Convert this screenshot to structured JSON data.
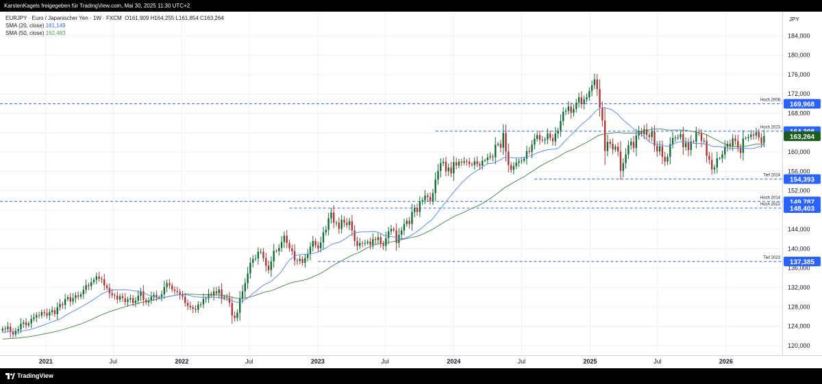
{
  "header": {
    "text": "KarstenKagels freigegeben für TradingView.com, Mai 30, 2025 11:30 UTC+2"
  },
  "legend": {
    "symbol": "EURJPY · Euro / Japanischer Yen · 1W · FXCM",
    "ohlc": "O161,909  H164,255  L161,854  C163,264",
    "sma20_label": "SMA (20, close)",
    "sma20_value": "161,149",
    "sma50_label": "SMA (50, close)",
    "sma50_value": "162,483"
  },
  "footer": {
    "brand": "TradingView"
  },
  "colors": {
    "up": "#0b6b2e",
    "down": "#b03030",
    "sma20": "#5b8def",
    "sma50": "#4f8a4f",
    "level_line": "#2962ff",
    "price_tag_blue": "#2962ff",
    "price_tag_current": "#1b5e20"
  },
  "chart_data": {
    "type": "candlestick",
    "title": "EURJPY · Euro / Japanischer Yen · 1W · FXCM",
    "currency": "JPY",
    "ylim": [
      118,
      189
    ],
    "y_ticks": [
      "184,000",
      "180,000",
      "176,000",
      "172,000",
      "168,000",
      "164,000",
      "160,000",
      "156,000",
      "152,000",
      "148,000",
      "144,000",
      "140,000",
      "136,000",
      "132,000",
      "128,000",
      "124,000",
      "120,000"
    ],
    "x_ticks": [
      {
        "label": "2021",
        "date": "2021-01-01",
        "bold": true
      },
      {
        "label": "Jul",
        "date": "2021-07-01",
        "bold": false
      },
      {
        "label": "2022",
        "date": "2022-01-01",
        "bold": true
      },
      {
        "label": "Jul",
        "date": "2022-07-01",
        "bold": false
      },
      {
        "label": "2023",
        "date": "2023-01-01",
        "bold": true
      },
      {
        "label": "Jul",
        "date": "2023-07-01",
        "bold": false
      },
      {
        "label": "2024",
        "date": "2024-01-01",
        "bold": true
      },
      {
        "label": "Jul",
        "date": "2024-07-01",
        "bold": false
      },
      {
        "label": "2025",
        "date": "2025-01-01",
        "bold": true
      },
      {
        "label": "Jul",
        "date": "2025-07-01",
        "bold": false
      },
      {
        "label": "2026",
        "date": "2026-01-01",
        "bold": true
      }
    ],
    "x_range": [
      "2020-08-31",
      "2026-06-01"
    ],
    "first_candle_date": "2020-09-07",
    "levels": [
      {
        "name": "Hoch 2008",
        "value": 169.968,
        "tag": "169,968",
        "start_date": "2020-08-31"
      },
      {
        "name": "Hoch 2023",
        "value": 164.308,
        "tag": "164,308",
        "start_date": "2023-11-13"
      },
      {
        "name": "Tief 2024",
        "value": 154.393,
        "tag": "154,393",
        "start_date": "2024-08-05"
      },
      {
        "name": "Hoch 2014",
        "value": 149.787,
        "tag": "149,787",
        "start_date": "2020-08-31"
      },
      {
        "name": "Hoch 2022",
        "value": 148.403,
        "tag": "148,403",
        "start_date": "2022-10-17"
      },
      {
        "name": "Tief 2023",
        "value": 137.385,
        "tag": "137,385",
        "start_date": "2023-01-02"
      }
    ],
    "current_price": {
      "value": 163.264,
      "tag": "163,264"
    },
    "series": [
      {
        "name": "SMA (20, close)",
        "value": 161.149
      },
      {
        "name": "SMA (50, close)",
        "value": 162.483
      }
    ],
    "close": [
      123.5,
      123.4,
      123.9,
      122.8,
      122.3,
      123.1,
      123.4,
      124.5,
      124.8,
      124.2,
      124.6,
      125.5,
      125.8,
      126.3,
      126.2,
      126.9,
      126.7,
      126.2,
      126.9,
      127.3,
      126.5,
      127.9,
      128.6,
      128.4,
      129.6,
      130.0,
      129.1,
      129.8,
      130.4,
      130.1,
      130.6,
      131.5,
      132.5,
      132.3,
      133.1,
      133.6,
      134.3,
      133.8,
      133.7,
      132.4,
      131.9,
      130.8,
      130.4,
      130.3,
      129.5,
      130.2,
      129.8,
      129.0,
      129.5,
      129.8,
      128.8,
      129.3,
      130.3,
      131.2,
      129.4,
      128.9,
      129.3,
      130.1,
      130.5,
      129.9,
      130.0,
      130.6,
      132.1,
      132.9,
      132.4,
      131.6,
      131.3,
      131.1,
      130.5,
      130.1,
      128.8,
      128.2,
      127.9,
      127.6,
      127.4,
      128.5,
      128.5,
      129.6,
      129.7,
      130.7,
      130.3,
      131.2,
      130.8,
      131.6,
      129.8,
      130.1,
      129.9,
      128.8,
      126.2,
      125.7,
      126.8,
      129.7,
      131.2,
      132.9,
      134.9,
      137.1,
      137.9,
      138.0,
      139.4,
      139.4,
      138.1,
      136.5,
      135.6,
      137.4,
      139.6,
      139.5,
      140.2,
      141.4,
      142.7,
      141.2,
      140.1,
      139.5,
      137.6,
      137.5,
      137.9,
      137.1,
      138.1,
      138.9,
      140.4,
      141.6,
      140.7,
      140.1,
      141.3,
      143.4,
      143.9,
      146.3,
      147.5,
      145.4,
      145.4,
      144.1,
      146.0,
      145.4,
      144.9,
      145.7,
      143.8,
      141.6,
      140.6,
      141.2,
      141.1,
      141.2,
      141.5,
      140.8,
      142.0,
      141.8,
      142.4,
      141.0,
      140.6,
      142.2,
      143.6,
      144.1,
      143.8,
      141.2,
      142.9,
      143.8,
      145.1,
      145.8,
      145.1,
      147.6,
      148.4,
      147.6,
      149.8,
      150.0,
      151.0,
      150.7,
      149.9,
      151.5,
      154.3,
      156.1,
      157.7,
      158.0,
      156.0,
      156.8,
      155.6,
      157.9,
      157.2,
      158.0,
      157.8,
      158.1,
      158.0,
      157.5,
      157.3,
      158.1,
      157.5,
      157.2,
      158.2,
      158.3,
      158.9,
      159.1,
      158.9,
      161.5,
      161.7,
      160.9,
      163.9,
      160.1,
      157.3,
      156.3,
      157.1,
      157.8,
      158.1,
      158.2,
      158.6,
      160.2,
      160.0,
      161.5,
      162.7,
      163.5,
      162.5,
      162.4,
      162.6,
      163.8,
      162.9,
      162.2,
      163.8,
      164.4,
      166.4,
      168.3,
      168.5,
      169.4,
      168.1,
      168.9,
      170.2,
      171.3,
      169.9,
      170.9,
      171.3,
      172.6,
      173.8,
      175.0,
      173.0,
      169.2,
      166.5,
      160.2,
      162.1,
      161.7,
      160.5,
      161.1,
      160.1,
      156.1,
      157.7,
      159.5,
      161.4,
      162.1,
      160.8,
      163.4,
      164.4,
      163.7,
      164.7,
      163.5,
      163.1,
      164.2,
      161.3,
      160.1,
      161.2,
      159.0,
      158.0,
      159.0,
      161.6,
      162.9,
      163.0,
      163.0,
      163.7,
      161.0,
      161.9,
      160.4,
      162.2,
      162.1,
      164.0,
      163.8,
      162.3,
      162.3,
      159.2,
      158.4,
      156.4,
      156.8,
      158.7,
      158.7,
      159.5,
      161.1,
      161.7,
      161.1,
      162.8,
      162.3,
      160.9,
      159.8,
      162.8,
      162.9,
      163.1,
      163.6,
      163.4,
      164.1,
      163.0,
      161.9,
      163.3
    ],
    "ohlc_note": "weekly candles; open = previous close; high/low estimated"
  }
}
